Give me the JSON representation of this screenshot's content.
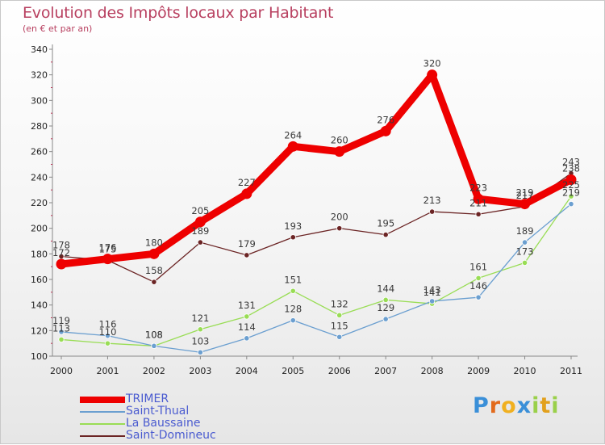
{
  "header": {
    "title": "Evolution des Impôts locaux par Habitant",
    "subtitle": "(en € et par an)"
  },
  "chart_data": {
    "type": "line",
    "x": [
      2000,
      2001,
      2002,
      2003,
      2004,
      2005,
      2006,
      2007,
      2008,
      2009,
      2010,
      2011
    ],
    "ylim": [
      100,
      340
    ],
    "yticks": [
      100,
      120,
      140,
      160,
      180,
      200,
      220,
      240,
      260,
      280,
      300,
      320,
      340
    ],
    "grid": false,
    "legend_position": "bottom-left",
    "series": [
      {
        "name": "TRIMER",
        "color": "#ee0000",
        "values": [
          172,
          176,
          180,
          205,
          227,
          264,
          260,
          276,
          320,
          223,
          219,
          238
        ]
      },
      {
        "name": "Saint-Thual",
        "color": "#6b9fd0",
        "values": [
          119,
          116,
          108,
          103,
          114,
          128,
          115,
          129,
          143,
          146,
          189,
          219
        ]
      },
      {
        "name": "La Baussaine",
        "color": "#99dd55",
        "values": [
          113,
          110,
          108,
          121,
          131,
          151,
          132,
          144,
          141,
          161,
          173,
          225
        ]
      },
      {
        "name": "Saint-Domineuc",
        "color": "#6b2424",
        "values": [
          178,
          175,
          158,
          189,
          179,
          193,
          200,
          195,
          213,
          211,
          217,
          243
        ]
      }
    ]
  },
  "logo": {
    "letters": [
      "P",
      "r",
      "o",
      "x",
      "i",
      "t",
      "i"
    ],
    "colors": [
      "#3a8fd8",
      "#e26a1c",
      "#f0b020",
      "#3a8fd8",
      "#9ad04a",
      "#e2a01c",
      "#9ad04a"
    ]
  }
}
